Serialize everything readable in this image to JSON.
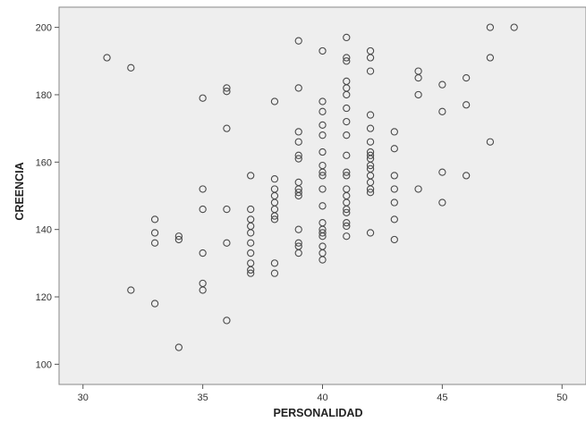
{
  "chart_data": {
    "type": "scatter",
    "title": "",
    "xlabel": "PERSONALIDAD",
    "ylabel": "CREENCIA",
    "xlim": [
      29,
      51
    ],
    "ylim": [
      94,
      206
    ],
    "xticks": [
      30,
      35,
      40,
      45,
      50
    ],
    "yticks": [
      100,
      120,
      140,
      160,
      180,
      200
    ],
    "grid": false,
    "colors": {
      "plot_background": "#eeeeee",
      "marker_stroke": "#4a4a4a",
      "frame": "#888888"
    },
    "points": [
      [
        31,
        191
      ],
      [
        32,
        188
      ],
      [
        32,
        122
      ],
      [
        33,
        143
      ],
      [
        33,
        139
      ],
      [
        33,
        136
      ],
      [
        33,
        118
      ],
      [
        34,
        138
      ],
      [
        34,
        137
      ],
      [
        34,
        105
      ],
      [
        35,
        179
      ],
      [
        35,
        152
      ],
      [
        35,
        146
      ],
      [
        35,
        133
      ],
      [
        35,
        124
      ],
      [
        35,
        122
      ],
      [
        36,
        182
      ],
      [
        36,
        181
      ],
      [
        36,
        170
      ],
      [
        36,
        146
      ],
      [
        36,
        136
      ],
      [
        36,
        113
      ],
      [
        37,
        156
      ],
      [
        37,
        146
      ],
      [
        37,
        143
      ],
      [
        37,
        141
      ],
      [
        37,
        139
      ],
      [
        37,
        136
      ],
      [
        37,
        133
      ],
      [
        37,
        130
      ],
      [
        37,
        128
      ],
      [
        37,
        127
      ],
      [
        38,
        178
      ],
      [
        38,
        155
      ],
      [
        38,
        152
      ],
      [
        38,
        150
      ],
      [
        38,
        148
      ],
      [
        38,
        146
      ],
      [
        38,
        144
      ],
      [
        38,
        143
      ],
      [
        38,
        130
      ],
      [
        38,
        127
      ],
      [
        39,
        196
      ],
      [
        39,
        182
      ],
      [
        39,
        169
      ],
      [
        39,
        166
      ],
      [
        39,
        162
      ],
      [
        39,
        161
      ],
      [
        39,
        154
      ],
      [
        39,
        152
      ],
      [
        39,
        151
      ],
      [
        39,
        150
      ],
      [
        39,
        140
      ],
      [
        39,
        136
      ],
      [
        39,
        135
      ],
      [
        39,
        133
      ],
      [
        40,
        193
      ],
      [
        40,
        178
      ],
      [
        40,
        175
      ],
      [
        40,
        171
      ],
      [
        40,
        168
      ],
      [
        40,
        163
      ],
      [
        40,
        159
      ],
      [
        40,
        157
      ],
      [
        40,
        156
      ],
      [
        40,
        152
      ],
      [
        40,
        147
      ],
      [
        40,
        142
      ],
      [
        40,
        140
      ],
      [
        40,
        139
      ],
      [
        40,
        138
      ],
      [
        40,
        135
      ],
      [
        40,
        133
      ],
      [
        40,
        131
      ],
      [
        41,
        197
      ],
      [
        41,
        191
      ],
      [
        41,
        190
      ],
      [
        41,
        184
      ],
      [
        41,
        182
      ],
      [
        41,
        180
      ],
      [
        41,
        176
      ],
      [
        41,
        172
      ],
      [
        41,
        168
      ],
      [
        41,
        162
      ],
      [
        41,
        157
      ],
      [
        41,
        156
      ],
      [
        41,
        152
      ],
      [
        41,
        150
      ],
      [
        41,
        148
      ],
      [
        41,
        146
      ],
      [
        41,
        145
      ],
      [
        41,
        142
      ],
      [
        41,
        141
      ],
      [
        41,
        138
      ],
      [
        42,
        193
      ],
      [
        42,
        191
      ],
      [
        42,
        187
      ],
      [
        42,
        174
      ],
      [
        42,
        170
      ],
      [
        42,
        166
      ],
      [
        42,
        163
      ],
      [
        42,
        162
      ],
      [
        42,
        161
      ],
      [
        42,
        159
      ],
      [
        42,
        158
      ],
      [
        42,
        156
      ],
      [
        42,
        154
      ],
      [
        42,
        152
      ],
      [
        42,
        151
      ],
      [
        42,
        139
      ],
      [
        43,
        169
      ],
      [
        43,
        164
      ],
      [
        43,
        156
      ],
      [
        43,
        152
      ],
      [
        43,
        148
      ],
      [
        43,
        143
      ],
      [
        43,
        137
      ],
      [
        44,
        187
      ],
      [
        44,
        185
      ],
      [
        44,
        180
      ],
      [
        44,
        152
      ],
      [
        45,
        183
      ],
      [
        45,
        175
      ],
      [
        45,
        157
      ],
      [
        45,
        148
      ],
      [
        46,
        185
      ],
      [
        46,
        177
      ],
      [
        46,
        156
      ],
      [
        47,
        200
      ],
      [
        47,
        191
      ],
      [
        47,
        166
      ],
      [
        48,
        200
      ]
    ]
  }
}
